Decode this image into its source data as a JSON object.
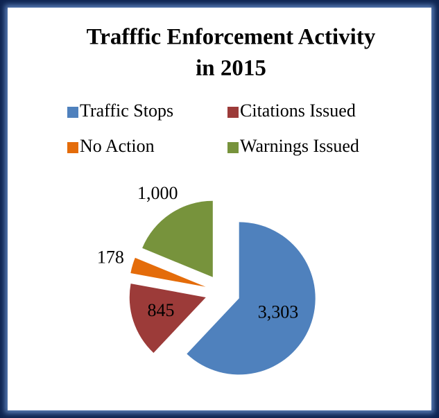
{
  "chart_data": {
    "type": "pie",
    "title": [
      "Trafffic Enforcement Activity",
      "in 2015"
    ],
    "categories": [
      "Traffic Stops",
      "Citations Issued",
      "No Action",
      "Warnings Issued"
    ],
    "values": [
      3303,
      845,
      178,
      1000
    ],
    "value_labels": [
      "3,303",
      "845",
      "178",
      "1,000"
    ],
    "colors": [
      "#4f81bd",
      "#9c3b39",
      "#e46c0a",
      "#77933c"
    ],
    "legend": "top",
    "exploded": true
  }
}
